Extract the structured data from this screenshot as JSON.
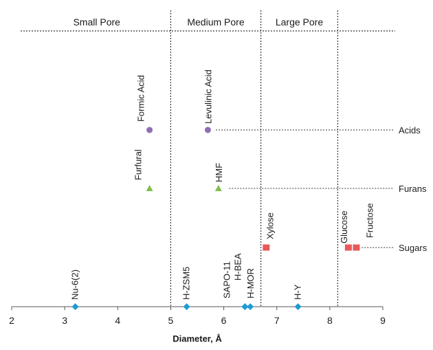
{
  "chart_data": {
    "type": "scatter",
    "xlabel": "Diameter, Å",
    "xlim": [
      2,
      9
    ],
    "xticks": [
      2,
      3,
      4,
      5,
      6,
      7,
      8,
      9
    ],
    "regions": [
      {
        "label": "Small Pore",
        "from": 2,
        "to": 5
      },
      {
        "label": "Medium Pore",
        "from": 5,
        "to": 6.7
      },
      {
        "label": "Large Pore",
        "from": 6.7,
        "to": 8.15
      }
    ],
    "categories": [
      {
        "label": "Acids",
        "row": "acids",
        "line_from": 5.85
      },
      {
        "label": "Furans",
        "row": "furans",
        "line_from": 6.1
      },
      {
        "label": "Sugars",
        "row": "sugars",
        "line_from": 8.6
      }
    ],
    "molecules": [
      {
        "name": "Formic Acid",
        "x": 4.6,
        "row": "acids",
        "marker": "circle",
        "color": "#8e6fb3"
      },
      {
        "name": "Levulinic  Acid",
        "x": 5.7,
        "row": "acids",
        "marker": "circle",
        "color": "#8e6fb3"
      },
      {
        "name": "Furfural",
        "x": 4.6,
        "row": "furans",
        "marker": "triangle",
        "color": "#7fbf4d"
      },
      {
        "name": "HMF",
        "x": 5.9,
        "row": "furans",
        "marker": "triangle",
        "color": "#7fbf4d"
      },
      {
        "name": "Xylose",
        "x": 6.8,
        "row": "sugars",
        "marker": "square",
        "color": "#e8595a"
      },
      {
        "name": "Glucose",
        "x": 8.35,
        "row": "sugars",
        "marker": "square",
        "color": "#e8595a"
      },
      {
        "name": "Fructose",
        "x": 8.5,
        "row": "sugars",
        "marker": "square",
        "color": "#e8595a"
      }
    ],
    "zeolites": [
      {
        "name": "Nu-6(2)",
        "x": 3.2
      },
      {
        "name": "H-ZSM5",
        "x": 5.3
      },
      {
        "name": "SAPO-11",
        "x": 6.4
      },
      {
        "name": "H-BEA",
        "x": 6.4
      },
      {
        "name": "H-MOR",
        "x": 6.5
      },
      {
        "name": "H-Y",
        "x": 7.4
      }
    ],
    "zeolite_color": "#1f9bd1"
  }
}
